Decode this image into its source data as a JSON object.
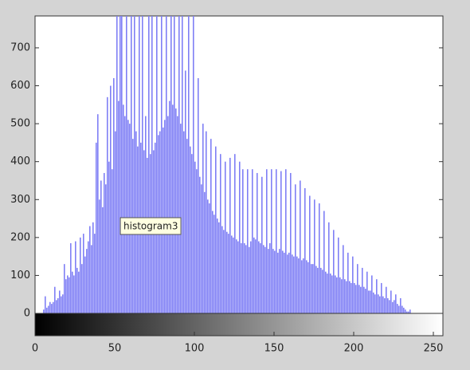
{
  "chart_data": {
    "type": "histogram",
    "tooltip": "histogram3",
    "color": "#7f7ff5",
    "bins": [
      0,
      1,
      2,
      3,
      4,
      5,
      6,
      7,
      8,
      9,
      10,
      11,
      12,
      13,
      14,
      15,
      16,
      17,
      18,
      19,
      20,
      21,
      22,
      23,
      24,
      25,
      26,
      27,
      28,
      29,
      30,
      31,
      32,
      33,
      34,
      35,
      36,
      37,
      38,
      39,
      40,
      41,
      42,
      43,
      44,
      45,
      46,
      47,
      48,
      49,
      50,
      51,
      52,
      53,
      54,
      55,
      56,
      57,
      58,
      59,
      60,
      61,
      62,
      63,
      64,
      65,
      66,
      67,
      68,
      69,
      70,
      71,
      72,
      73,
      74,
      75,
      76,
      77,
      78,
      79,
      80,
      81,
      82,
      83,
      84,
      85,
      86,
      87,
      88,
      89,
      90,
      91,
      92,
      93,
      94,
      95,
      96,
      97,
      98,
      99,
      100,
      101,
      102,
      103,
      104,
      105,
      106,
      107,
      108,
      109,
      110,
      111,
      112,
      113,
      114,
      115,
      116,
      117,
      118,
      119,
      120,
      121,
      122,
      123,
      124,
      125,
      126,
      127,
      128,
      129,
      130,
      131,
      132,
      133,
      134,
      135,
      136,
      137,
      138,
      139,
      140,
      141,
      142,
      143,
      144,
      145,
      146,
      147,
      148,
      149,
      150,
      151,
      152,
      153,
      154,
      155,
      156,
      157,
      158,
      159,
      160,
      161,
      162,
      163,
      164,
      165,
      166,
      167,
      168,
      169,
      170,
      171,
      172,
      173,
      174,
      175,
      176,
      177,
      178,
      179,
      180,
      181,
      182,
      183,
      184,
      185,
      186,
      187,
      188,
      189,
      190,
      191,
      192,
      193,
      194,
      195,
      196,
      197,
      198,
      199,
      200,
      201,
      202,
      203,
      204,
      205,
      206,
      207,
      208,
      209,
      210,
      211,
      212,
      213,
      214,
      215,
      216,
      217,
      218,
      219,
      220,
      221,
      222,
      223,
      224,
      225,
      226,
      227,
      228,
      229,
      230,
      231,
      232,
      233,
      234,
      235,
      236,
      237,
      238,
      239,
      240,
      241,
      242,
      243,
      244,
      245,
      246,
      247,
      248,
      249,
      250,
      251,
      252,
      253,
      254,
      255,
      256
    ],
    "values": [
      0,
      0,
      0,
      0,
      0,
      10,
      45,
      15,
      20,
      30,
      25,
      30,
      70,
      35,
      40,
      60,
      45,
      50,
      130,
      90,
      100,
      95,
      185,
      110,
      100,
      190,
      120,
      110,
      200,
      130,
      210,
      150,
      170,
      190,
      230,
      180,
      240,
      210,
      450,
      525,
      300,
      350,
      280,
      370,
      340,
      570,
      400,
      600,
      380,
      620,
      480,
      800,
      560,
      800,
      800,
      550,
      520,
      800,
      510,
      500,
      800,
      460,
      800,
      480,
      440,
      800,
      450,
      800,
      430,
      520,
      410,
      800,
      420,
      800,
      430,
      450,
      800,
      470,
      480,
      800,
      490,
      510,
      800,
      520,
      560,
      800,
      550,
      800,
      540,
      520,
      800,
      500,
      800,
      480,
      640,
      460,
      800,
      440,
      420,
      800,
      400,
      380,
      620,
      360,
      340,
      500,
      320,
      480,
      300,
      290,
      460,
      270,
      260,
      440,
      250,
      240,
      420,
      230,
      220,
      400,
      215,
      210,
      410,
      205,
      200,
      420,
      195,
      190,
      400,
      185,
      380,
      185,
      180,
      380,
      175,
      190,
      380,
      200,
      195,
      370,
      190,
      185,
      360,
      180,
      175,
      380,
      170,
      185,
      380,
      170,
      165,
      380,
      160,
      170,
      375,
      165,
      160,
      380,
      155,
      160,
      370,
      155,
      150,
      340,
      150,
      145,
      350,
      140,
      145,
      330,
      140,
      135,
      310,
      130,
      130,
      300,
      125,
      120,
      290,
      120,
      115,
      270,
      110,
      105,
      240,
      105,
      100,
      220,
      100,
      95,
      200,
      95,
      90,
      180,
      90,
      85,
      160,
      85,
      80,
      150,
      80,
      75,
      130,
      75,
      70,
      120,
      70,
      65,
      110,
      60,
      60,
      100,
      55,
      50,
      90,
      50,
      45,
      80,
      45,
      40,
      70,
      40,
      35,
      60,
      30,
      35,
      50,
      25,
      20,
      40,
      20,
      15,
      10,
      5,
      5,
      10,
      0,
      0,
      0,
      0,
      0,
      0,
      0,
      0,
      0,
      0,
      0,
      0,
      0,
      0,
      0,
      0,
      0,
      0,
      0,
      0
    ],
    "xlim": [
      0,
      256
    ],
    "ylim": [
      0,
      784
    ],
    "xticks": [
      0,
      50,
      100,
      150,
      200,
      250
    ],
    "yticks": [
      0,
      100,
      200,
      300,
      400,
      500,
      600,
      700
    ]
  }
}
